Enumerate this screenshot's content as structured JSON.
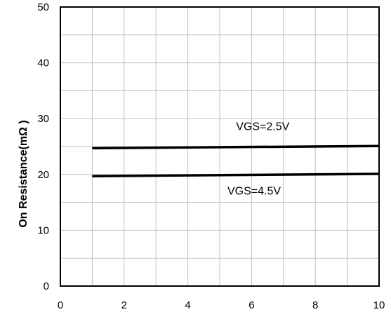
{
  "chart_data": {
    "type": "line",
    "title": "",
    "xlabel": "",
    "ylabel": "On Resistance(mΩ )",
    "xlim": [
      0,
      10
    ],
    "ylim": [
      0,
      50
    ],
    "x_ticks": [
      0,
      2,
      4,
      6,
      8,
      10
    ],
    "y_ticks": [
      0,
      10,
      20,
      30,
      40,
      50
    ],
    "grid": true,
    "grid_x_step": 1,
    "grid_y_step": 5,
    "series": [
      {
        "name": "VGS=2.5V",
        "x": [
          1,
          10
        ],
        "y": [
          24.7,
          25.1
        ],
        "color": "#000000"
      },
      {
        "name": "VGS=4.5V",
        "x": [
          1,
          10
        ],
        "y": [
          19.7,
          20.1
        ],
        "color": "#000000"
      }
    ]
  }
}
